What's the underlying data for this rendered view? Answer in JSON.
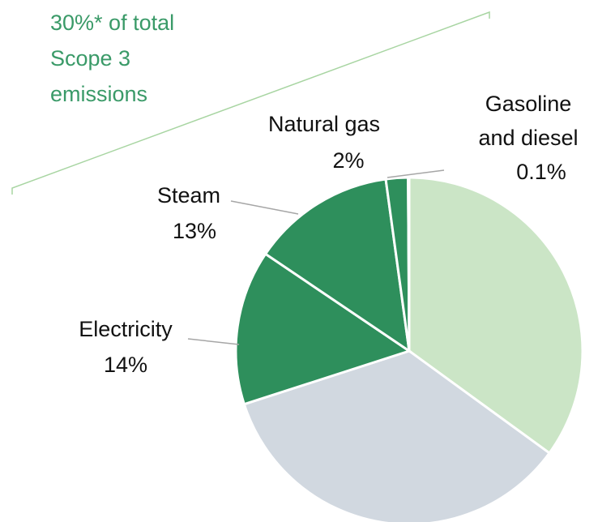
{
  "chart_data": {
    "type": "pie",
    "categories": [
      null,
      null,
      "Electricity",
      "Steam",
      "Natural gas",
      "Gasoline and diesel"
    ],
    "values": [
      34,
      34,
      14,
      13,
      2,
      0.1
    ],
    "value_labels": [
      null,
      null,
      "14%",
      "13%",
      "2%",
      "0.1%"
    ],
    "colors": [
      "#cbe5c6",
      "#d1d8e0",
      "#2e8f5c",
      "#2e8f5c",
      "#2e8f5c",
      "#4472c4"
    ],
    "annotation": [
      "30%* of total",
      "Scope 3",
      "emissions"
    ]
  }
}
